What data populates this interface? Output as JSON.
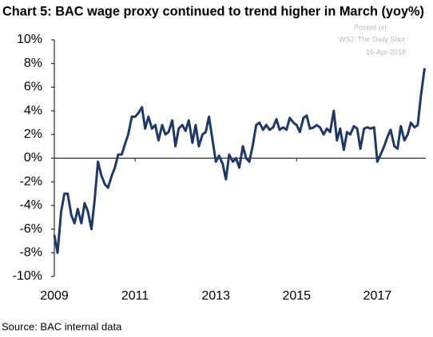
{
  "chart_data": {
    "type": "line",
    "title": "Chart 5: BAC wage proxy continued to trend higher in March (yoy%)",
    "annotations": [
      "Posted on",
      "WSJ: The Daily Shot",
      "16-Apr-2018"
    ],
    "source": "Source: BAC internal data",
    "xlim": [
      2009,
      2018.2
    ],
    "xticks": [
      2009,
      2011,
      2013,
      2015,
      2017
    ],
    "ylim": [
      -10,
      10
    ],
    "yticks": [
      {
        "value": 10,
        "label": "10%"
      },
      {
        "value": 8,
        "label": "8%"
      },
      {
        "value": 6,
        "label": "6%"
      },
      {
        "value": 4,
        "label": "4%"
      },
      {
        "value": 2,
        "label": "2%"
      },
      {
        "value": 0,
        "label": "0%"
      },
      {
        "value": -2,
        "label": "-2%"
      },
      {
        "value": -4,
        "label": "-4%"
      },
      {
        "value": -6,
        "label": "-6%"
      },
      {
        "value": -8,
        "label": "-8%"
      },
      {
        "value": -10,
        "label": "-10%"
      }
    ],
    "grid": false,
    "color": "#1f3864",
    "x": [
      2009.0,
      2009.08,
      2009.17,
      2009.25,
      2009.33,
      2009.42,
      2009.5,
      2009.58,
      2009.67,
      2009.75,
      2009.83,
      2009.92,
      2010.0,
      2010.08,
      2010.17,
      2010.25,
      2010.33,
      2010.42,
      2010.5,
      2010.58,
      2010.67,
      2010.75,
      2010.83,
      2010.92,
      2011.0,
      2011.08,
      2011.17,
      2011.25,
      2011.33,
      2011.42,
      2011.5,
      2011.58,
      2011.67,
      2011.75,
      2011.83,
      2011.92,
      2012.0,
      2012.08,
      2012.17,
      2012.25,
      2012.33,
      2012.42,
      2012.5,
      2012.58,
      2012.67,
      2012.75,
      2012.83,
      2012.92,
      2013.0,
      2013.08,
      2013.17,
      2013.25,
      2013.33,
      2013.42,
      2013.5,
      2013.58,
      2013.67,
      2013.75,
      2013.83,
      2013.92,
      2014.0,
      2014.08,
      2014.17,
      2014.25,
      2014.33,
      2014.42,
      2014.5,
      2014.58,
      2014.67,
      2014.75,
      2014.83,
      2014.92,
      2015.0,
      2015.08,
      2015.17,
      2015.25,
      2015.33,
      2015.42,
      2015.5,
      2015.58,
      2015.67,
      2015.75,
      2015.83,
      2015.92,
      2016.0,
      2016.08,
      2016.17,
      2016.25,
      2016.33,
      2016.42,
      2016.5,
      2016.58,
      2016.67,
      2016.75,
      2016.83,
      2016.92,
      2017.0,
      2017.08,
      2017.17,
      2017.25,
      2017.33,
      2017.42,
      2017.5,
      2017.58,
      2017.67,
      2017.75,
      2017.83,
      2017.92,
      2018.0,
      2018.08,
      2018.17
    ],
    "values": [
      -6.5,
      -8,
      -4.5,
      -3,
      -3,
      -4.8,
      -5.5,
      -4.3,
      -5.5,
      -3.8,
      -4.5,
      -6,
      -3.5,
      -0.3,
      -1.5,
      -2.2,
      -2.5,
      -1.5,
      -0.8,
      0.3,
      0.3,
      1.2,
      2,
      3.5,
      3.5,
      3.8,
      4.3,
      2.5,
      3.5,
      2.5,
      2.8,
      1.5,
      2.8,
      2,
      2.2,
      3.2,
      1,
      2.5,
      2.8,
      2.3,
      3.2,
      1.3,
      2.8,
      1,
      2,
      2.2,
      3.5,
      1.5,
      -0.3,
      0.2,
      -0.5,
      -1.8,
      0.3,
      -0.3,
      0,
      -0.8,
      1,
      0,
      -0.3,
      1.2,
      2.8,
      3,
      2.4,
      2.8,
      2.4,
      2.6,
      3.3,
      2.4,
      2.6,
      2.4,
      3.4,
      3,
      2.8,
      2.2,
      3.4,
      3.6,
      2.5,
      2.6,
      2.8,
      2.6,
      2,
      2.5,
      2.2,
      4,
      1.5,
      2.5,
      0.7,
      2.2,
      2,
      2.7,
      2.5,
      0.8,
      2.5,
      2.6,
      2.5,
      2.6,
      -0.3,
      0.3,
      1,
      1.8,
      2.4,
      1,
      0.8,
      2.7,
      1.5,
      2,
      3,
      2.6,
      2.8,
      5.3,
      7.6
    ]
  }
}
